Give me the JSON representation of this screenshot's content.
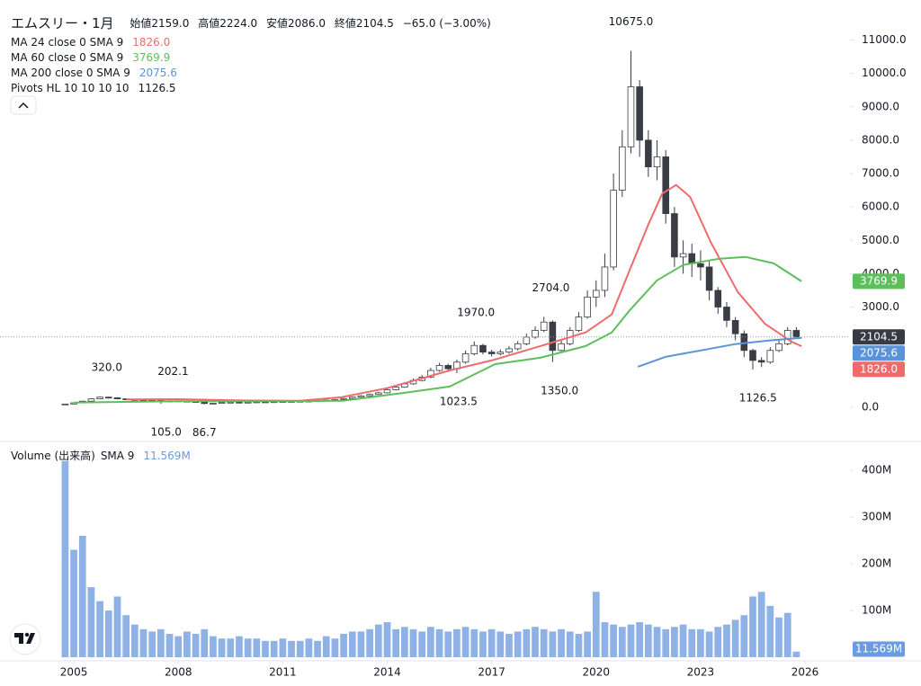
{
  "header": {
    "title": "エムスリー・1月",
    "quote": [
      "始値2159.0",
      "高値2224.0",
      "安値2086.0",
      "終値2104.5",
      "−65.0 (−3.00%)"
    ]
  },
  "chart_data": {
    "type": "candlestick",
    "x": [
      2004.75,
      2005,
      2005.25,
      2005.5,
      2005.75,
      2006,
      2006.25,
      2006.5,
      2006.75,
      2007,
      2007.25,
      2007.5,
      2007.75,
      2008,
      2008.25,
      2008.5,
      2008.75,
      2009,
      2009.25,
      2009.5,
      2009.75,
      2010,
      2010.25,
      2010.5,
      2010.75,
      2011,
      2011.25,
      2011.5,
      2011.75,
      2012,
      2012.25,
      2012.5,
      2012.75,
      2013,
      2013.25,
      2013.5,
      2013.75,
      2014,
      2014.25,
      2014.5,
      2014.75,
      2015,
      2015.25,
      2015.5,
      2015.75,
      2016,
      2016.25,
      2016.5,
      2016.75,
      2017,
      2017.25,
      2017.5,
      2017.75,
      2018,
      2018.25,
      2018.5,
      2018.75,
      2019,
      2019.25,
      2019.5,
      2019.75,
      2020,
      2020.25,
      2020.5,
      2020.75,
      2021,
      2021.25,
      2021.5,
      2021.75,
      2022,
      2022.25,
      2022.5,
      2022.75,
      2023,
      2023.25,
      2023.5,
      2023.75,
      2024,
      2024.25,
      2024.5,
      2024.75,
      2025,
      2025.25,
      2025.5,
      2025.75
    ],
    "open": [
      85,
      95,
      130,
      180,
      250,
      300,
      280,
      250,
      230,
      220,
      210,
      200,
      160,
      190,
      180,
      170,
      150,
      110,
      120,
      140,
      150,
      145,
      150,
      160,
      155,
      165,
      170,
      175,
      180,
      185,
      200,
      210,
      230,
      260,
      300,
      340,
      380,
      430,
      520,
      600,
      700,
      800,
      900,
      1100,
      1250,
      1150,
      1350,
      1600,
      1850,
      1650,
      1600,
      1650,
      1750,
      1900,
      2100,
      2300,
      2550,
      1700,
      1900,
      2300,
      2700,
      3300,
      3500,
      4200,
      6500,
      7800,
      9600,
      8000,
      7200,
      7500,
      5800,
      4500,
      4600,
      4300,
      4200,
      3500,
      3000,
      2600,
      2200,
      1700,
      1400,
      1350,
      1700,
      1900,
      2300
    ],
    "high": [
      103,
      140,
      195,
      270,
      320,
      315,
      295,
      265,
      245,
      235,
      225,
      210,
      202.1,
      200,
      190,
      180,
      160,
      130,
      150,
      160,
      158,
      160,
      170,
      168,
      175,
      180,
      185,
      190,
      195,
      210,
      222,
      245,
      280,
      320,
      365,
      410,
      460,
      560,
      650,
      750,
      860,
      960,
      1180,
      1330,
      1300,
      1430,
      1700,
      1970,
      1900,
      1720,
      1730,
      1830,
      1980,
      2200,
      2420,
      2704,
      2600,
      2000,
      2400,
      2850,
      3500,
      3800,
      4600,
      7000,
      8300,
      10675,
      9800,
      8300,
      8000,
      7700,
      6000,
      5000,
      4900,
      4700,
      4400,
      3600,
      3150,
      2700,
      2300,
      1750,
      1500,
      1800,
      2000,
      2400,
      2400
    ],
    "low": [
      80,
      90,
      125,
      170,
      240,
      260,
      235,
      215,
      205,
      195,
      185,
      105,
      150,
      165,
      160,
      140,
      86.7,
      100,
      115,
      135,
      138,
      140,
      145,
      148,
      150,
      158,
      163,
      168,
      172,
      178,
      192,
      203,
      222,
      250,
      290,
      325,
      365,
      415,
      500,
      580,
      670,
      770,
      870,
      1060,
      1100,
      1023.5,
      1300,
      1550,
      1580,
      1520,
      1550,
      1600,
      1700,
      1850,
      2050,
      2250,
      1350,
      1650,
      1850,
      2250,
      2650,
      3000,
      3300,
      4100,
      6300,
      7600,
      7500,
      6900,
      6800,
      5500,
      4200,
      4000,
      3900,
      3800,
      3200,
      2800,
      2400,
      2000,
      1500,
      1126.5,
      1200,
      1300,
      1650,
      1850,
      2050
    ],
    "close": [
      95,
      130,
      180,
      250,
      300,
      280,
      250,
      230,
      220,
      210,
      200,
      160,
      190,
      180,
      170,
      150,
      110,
      120,
      140,
      150,
      145,
      150,
      160,
      155,
      165,
      170,
      175,
      180,
      185,
      200,
      210,
      230,
      260,
      300,
      340,
      380,
      430,
      520,
      600,
      700,
      800,
      900,
      1100,
      1250,
      1150,
      1350,
      1600,
      1850,
      1650,
      1600,
      1650,
      1750,
      1900,
      2100,
      2300,
      2550,
      1700,
      1900,
      2300,
      2700,
      3300,
      3500,
      4200,
      6500,
      7800,
      9600,
      8000,
      7200,
      7500,
      5800,
      4500,
      4600,
      4300,
      4200,
      3500,
      3000,
      2600,
      2200,
      1700,
      1400,
      1350,
      1700,
      1900,
      2300,
      2104.5
    ],
    "up_color": "#ffffff",
    "down_color": "#3a3d45",
    "edge_color": "#3a3d45",
    "xlim": [
      2002.88,
      2027.29
    ],
    "xticks": [
      2005,
      2008,
      2011,
      2014,
      2017,
      2020,
      2023,
      2026
    ],
    "ylim": [
      -1000,
      12200
    ],
    "yticks": [
      {
        "value": 0,
        "label": "0.0"
      },
      {
        "value": 3000,
        "label": "3000.0"
      },
      {
        "value": 4000,
        "label": "4000.0"
      },
      {
        "value": 5000,
        "label": "5000.0"
      },
      {
        "value": 6000,
        "label": "6000.0"
      },
      {
        "value": 7000,
        "label": "7000.0"
      },
      {
        "value": 8000,
        "label": "8000.0"
      },
      {
        "value": 9000,
        "label": "9000.0"
      },
      {
        "value": 10000,
        "label": "10000.0"
      },
      {
        "value": 11000,
        "label": "11000.0"
      }
    ],
    "grid": false,
    "last_price": {
      "value": 2104.5,
      "label": "2104.5",
      "color": "#363a45"
    },
    "series": [
      {
        "name": "MA 24 close 0 SMA 9",
        "color": "#ef6b6b",
        "x": [
          2006.5,
          2008,
          2010,
          2011.5,
          2012.7,
          2014,
          2015.8,
          2017,
          2018.4,
          2019.7,
          2020.45,
          2020.97,
          2021.5,
          2021.9,
          2022.3,
          2022.7,
          2023.3,
          2024.07,
          2024.85,
          2025.6,
          2025.9
        ],
        "values": [
          230,
          240,
          200,
          190,
          300,
          570,
          1100,
          1400,
          1830,
          2240,
          2780,
          4120,
          5470,
          6400,
          6660,
          6300,
          4930,
          3450,
          2500,
          1970,
          1826
        ],
        "last": {
          "value": 1826,
          "label": "1826.0"
        }
      },
      {
        "name": "MA 60 close 0 SMA 9",
        "color": "#5cbf5c",
        "x": [
          2005,
          2008,
          2011,
          2012.7,
          2014.5,
          2015.8,
          2017.1,
          2018.4,
          2019.7,
          2020.45,
          2020.97,
          2021.75,
          2022.5,
          2023.55,
          2024.3,
          2025.1,
          2025.9
        ],
        "values": [
          140,
          180,
          180,
          190,
          430,
          620,
          1290,
          1480,
          1830,
          2240,
          2910,
          3800,
          4260,
          4450,
          4500,
          4310,
          3769.9
        ],
        "last": {
          "value": 3769.9,
          "label": "3769.9"
        }
      },
      {
        "name": "MA 200 close 0 SMA 9",
        "color": "#5b93d8",
        "x": [
          2021.2,
          2022,
          2023,
          2024,
          2025,
          2025.9
        ],
        "values": [
          1213,
          1510,
          1700,
          1890,
          2000,
          2075.6
        ],
        "last": {
          "value": 2075.6,
          "label": "2075.6"
        }
      }
    ],
    "pivots": {
      "name": "Pivots HL 10 10 10 10",
      "last_label": "1126.5",
      "highs": [
        {
          "x": 2005.95,
          "value": 320,
          "label": "320.0"
        },
        {
          "x": 2007.85,
          "value": 202.1,
          "label": "202.1"
        },
        {
          "x": 2016.55,
          "value": 1970,
          "label": "1970.0"
        },
        {
          "x": 2018.7,
          "value": 2704,
          "label": "2704.0"
        },
        {
          "x": 2021.0,
          "value": 10675,
          "label": "10675.0"
        }
      ],
      "lows": [
        {
          "x": 2007.65,
          "value": 105,
          "label": "105.0"
        },
        {
          "x": 2008.75,
          "value": 86.7,
          "label": "86.7"
        },
        {
          "x": 2016.05,
          "value": 1023.5,
          "label": "1023.5"
        },
        {
          "x": 2018.95,
          "value": 1350,
          "label": "1350.0"
        },
        {
          "x": 2024.65,
          "value": 1126.5,
          "label": "1126.5"
        }
      ]
    },
    "volume": {
      "type": "bar",
      "name": "Volume (出来高)",
      "sma_name": "SMA 9",
      "color": "#8fb2e6",
      "sma": {
        "value": 11.569,
        "label": "11.569M",
        "color": "#6b9be0"
      },
      "ylim": [
        0,
        460
      ],
      "yticks": [
        {
          "value": 100,
          "label": "100M"
        },
        {
          "value": 200,
          "label": "200M"
        },
        {
          "value": 300,
          "label": "300M"
        },
        {
          "value": 400,
          "label": "400M"
        }
      ],
      "values": [
        420,
        230,
        260,
        150,
        120,
        100,
        130,
        90,
        70,
        60,
        55,
        60,
        50,
        45,
        55,
        50,
        60,
        45,
        40,
        40,
        45,
        40,
        40,
        35,
        35,
        40,
        35,
        35,
        40,
        35,
        45,
        40,
        50,
        55,
        55,
        60,
        70,
        75,
        60,
        65,
        60,
        55,
        65,
        60,
        55,
        60,
        65,
        60,
        55,
        60,
        55,
        50,
        55,
        60,
        65,
        60,
        55,
        60,
        55,
        50,
        55,
        140,
        75,
        70,
        65,
        70,
        75,
        70,
        65,
        60,
        65,
        70,
        60,
        60,
        55,
        65,
        70,
        80,
        90,
        130,
        140,
        110,
        85,
        95,
        12
      ]
    }
  }
}
